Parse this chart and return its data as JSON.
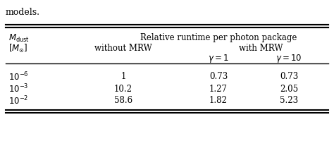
{
  "title_text": "models.",
  "col0_header_line1": "$M_{\\rm dust}$",
  "col0_header_line2": "$[M_{\\odot}]$",
  "col1_header": "without MRW",
  "col23_header": "with MRW",
  "col2_sub": "$\\gamma = 1$",
  "col3_sub": "$\\gamma = 10$",
  "span_header": "Relative runtime per photon package",
  "rows": [
    [
      "$10^{-6}$",
      "1",
      "0.73",
      "0.73"
    ],
    [
      "$10^{-3}$",
      "10.2",
      "1.27",
      "2.05"
    ],
    [
      "$10^{-2}$",
      "58.6",
      "1.82",
      "5.23"
    ]
  ],
  "bg_color": "white",
  "text_color": "black",
  "line_color": "black",
  "font_size": 8.5,
  "title_font_size": 9.0
}
